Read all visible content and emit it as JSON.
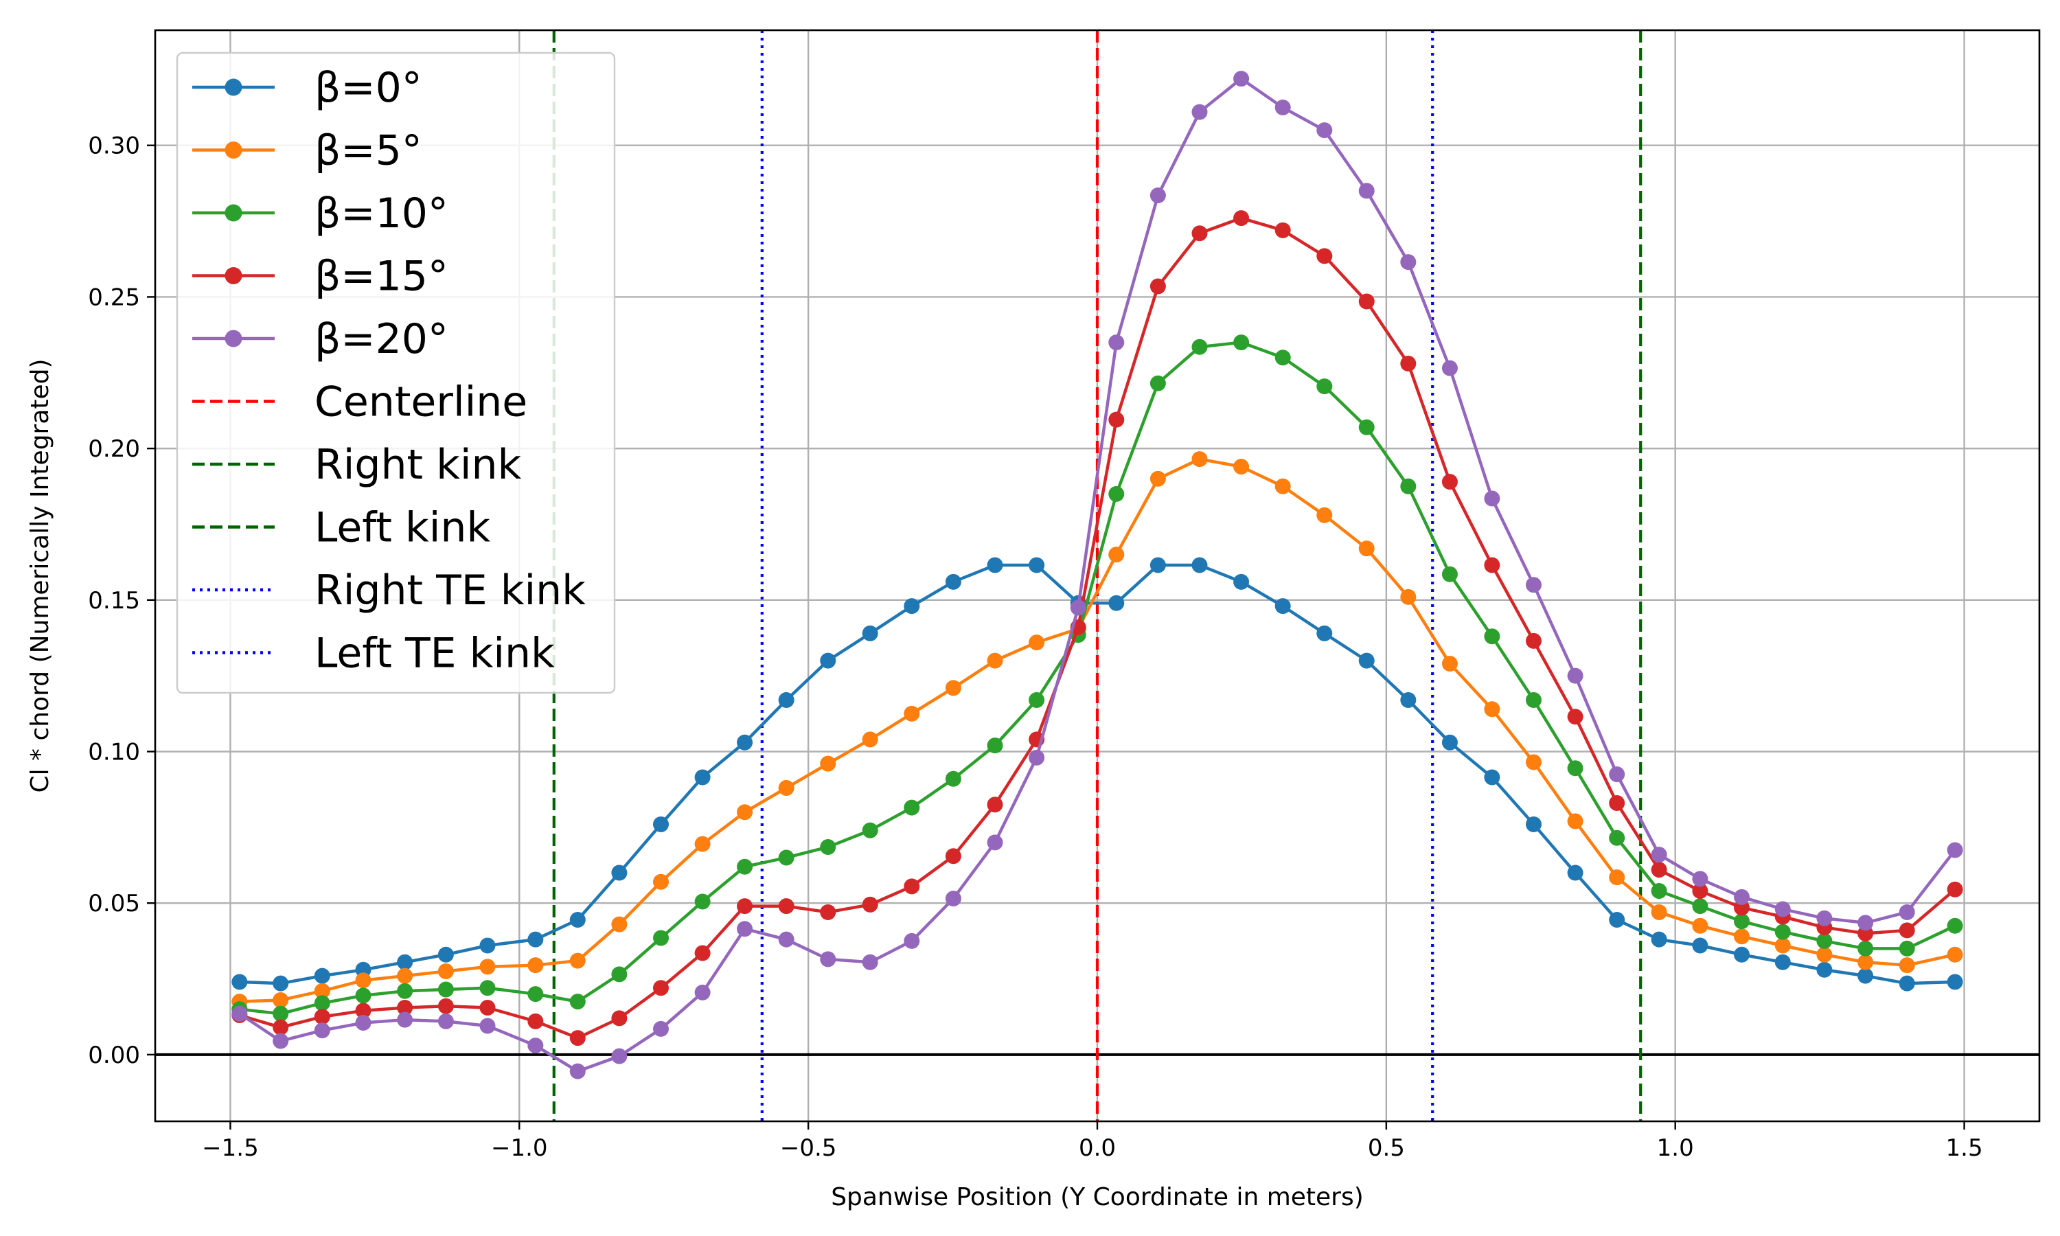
{
  "chart_data": {
    "type": "line",
    "xlabel": "Spanwise Position (Y Coordinate in meters)",
    "ylabel": "Cl * chord (Numerically Integrated)",
    "xlim": [
      -1.63,
      1.63
    ],
    "ylim": [
      -0.022,
      0.338
    ],
    "xticks": [
      -1.5,
      -1.0,
      -0.5,
      0.0,
      0.5,
      1.0,
      1.5
    ],
    "xtick_labels": [
      "−1.5",
      "−1.0",
      "−0.5",
      "0.0",
      "0.5",
      "1.0",
      "1.5"
    ],
    "yticks": [
      0.0,
      0.05,
      0.1,
      0.15,
      0.2,
      0.25,
      0.3
    ],
    "ytick_labels": [
      "0.00",
      "0.05",
      "0.10",
      "0.15",
      "0.20",
      "0.25",
      "0.30"
    ],
    "grid": true,
    "legend_position": "top-left",
    "x": [
      -1.484,
      -1.413,
      -1.341,
      -1.27,
      -1.198,
      -1.127,
      -1.055,
      -0.972,
      -0.899,
      -0.827,
      -0.755,
      -0.683,
      -0.61,
      -0.538,
      -0.466,
      -0.393,
      -0.321,
      -0.249,
      -0.177,
      -0.105,
      -0.033,
      0.033,
      0.105,
      0.177,
      0.249,
      0.321,
      0.393,
      0.466,
      0.538,
      0.61,
      0.683,
      0.755,
      0.827,
      0.899,
      0.972,
      1.043,
      1.115,
      1.186,
      1.258,
      1.329,
      1.401,
      1.484
    ],
    "series": [
      {
        "name": "β=0°",
        "color": "#1f77b4",
        "values": [
          0.024,
          0.0235,
          0.026,
          0.028,
          0.0305,
          0.033,
          0.036,
          0.038,
          0.0445,
          0.06,
          0.076,
          0.0915,
          0.103,
          0.117,
          0.13,
          0.139,
          0.148,
          0.156,
          0.1615,
          0.1615,
          0.149,
          0.149,
          0.1615,
          0.1615,
          0.156,
          0.148,
          0.139,
          0.13,
          0.117,
          0.103,
          0.0915,
          0.076,
          0.06,
          0.0445,
          0.038,
          0.036,
          0.033,
          0.0305,
          0.028,
          0.026,
          0.0235,
          0.024
        ]
      },
      {
        "name": "β=5°",
        "color": "#ff7f0e",
        "values": [
          0.0175,
          0.018,
          0.021,
          0.0245,
          0.026,
          0.0275,
          0.029,
          0.0295,
          0.031,
          0.043,
          0.057,
          0.0695,
          0.08,
          0.088,
          0.096,
          0.104,
          0.1125,
          0.121,
          0.13,
          0.136,
          0.1405,
          0.165,
          0.19,
          0.1965,
          0.194,
          0.1875,
          0.178,
          0.167,
          0.151,
          0.129,
          0.114,
          0.0965,
          0.077,
          0.0585,
          0.047,
          0.0425,
          0.039,
          0.036,
          0.033,
          0.0305,
          0.0295,
          0.033
        ]
      },
      {
        "name": "β=10°",
        "color": "#2ca02c",
        "values": [
          0.015,
          0.0135,
          0.017,
          0.0195,
          0.021,
          0.0215,
          0.022,
          0.02,
          0.0175,
          0.0265,
          0.0385,
          0.0505,
          0.062,
          0.065,
          0.0685,
          0.074,
          0.0815,
          0.091,
          0.102,
          0.117,
          0.1385,
          0.185,
          0.2215,
          0.2335,
          0.235,
          0.23,
          0.2205,
          0.207,
          0.1875,
          0.1585,
          0.138,
          0.117,
          0.0945,
          0.0715,
          0.054,
          0.049,
          0.044,
          0.0405,
          0.0375,
          0.035,
          0.035,
          0.0425
        ]
      },
      {
        "name": "β=15°",
        "color": "#d62728",
        "values": [
          0.013,
          0.009,
          0.0125,
          0.0145,
          0.0155,
          0.016,
          0.0155,
          0.011,
          0.0055,
          0.012,
          0.022,
          0.0335,
          0.049,
          0.049,
          0.047,
          0.0495,
          0.0555,
          0.0655,
          0.0825,
          0.104,
          0.141,
          0.2095,
          0.2535,
          0.271,
          0.276,
          0.272,
          0.2635,
          0.2485,
          0.228,
          0.189,
          0.1615,
          0.1365,
          0.1115,
          0.083,
          0.061,
          0.054,
          0.0485,
          0.0455,
          0.042,
          0.04,
          0.041,
          0.0545
        ]
      },
      {
        "name": "β=20°",
        "color": "#9467bd",
        "values": [
          0.0135,
          0.0045,
          0.008,
          0.0105,
          0.0115,
          0.011,
          0.0095,
          0.003,
          -0.0055,
          -0.0005,
          0.0085,
          0.0205,
          0.0415,
          0.038,
          0.0315,
          0.0305,
          0.0375,
          0.0515,
          0.07,
          0.098,
          0.1475,
          0.235,
          0.2835,
          0.311,
          0.322,
          0.3125,
          0.305,
          0.285,
          0.2615,
          0.2265,
          0.1835,
          0.155,
          0.125,
          0.0925,
          0.066,
          0.058,
          0.052,
          0.048,
          0.045,
          0.0435,
          0.047,
          0.0675
        ]
      }
    ],
    "reference_lines": [
      {
        "name": "Centerline",
        "x": 0.0,
        "color": "#ff0000",
        "style": "dashed"
      },
      {
        "name": "Right kink",
        "x": 0.94,
        "color": "#006400",
        "style": "dashed"
      },
      {
        "name": "Left kink",
        "x": -0.94,
        "color": "#006400",
        "style": "dashed"
      },
      {
        "name": "Right TE kink",
        "x": 0.58,
        "color": "#0000ff",
        "style": "dotted"
      },
      {
        "name": "Left TE kink",
        "x": -0.58,
        "color": "#0000ff",
        "style": "dotted"
      }
    ],
    "zero_line": {
      "y": 0.0,
      "color": "#000000"
    }
  }
}
